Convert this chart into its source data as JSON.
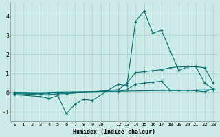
{
  "xlabel": "Humidex (Indice chaleur)",
  "background_color": "#cceae7",
  "grid_color": "#aacfcc",
  "line_color": "#006e6e",
  "xlim": [
    -0.5,
    23.5
  ],
  "ylim": [
    -1.5,
    4.7
  ],
  "yticks": [
    -1,
    0,
    1,
    2,
    3,
    4
  ],
  "lines": [
    {
      "x": [
        0,
        3,
        4,
        5,
        6,
        7,
        8,
        9,
        12,
        13,
        14,
        15,
        16,
        17,
        18,
        19,
        20,
        21,
        22,
        23
      ],
      "y": [
        -0.1,
        -0.2,
        -0.3,
        -0.15,
        -1.1,
        -0.6,
        -0.35,
        -0.4,
        0.45,
        0.35,
        3.7,
        4.25,
        3.1,
        3.25,
        2.2,
        1.15,
        1.35,
        1.35,
        0.5,
        0.2
      ]
    },
    {
      "x": [
        0,
        3,
        4,
        5,
        6,
        12,
        13,
        14,
        15,
        16,
        17,
        18,
        19,
        20,
        21,
        22,
        23
      ],
      "y": [
        -0.05,
        -0.1,
        -0.1,
        -0.05,
        -0.05,
        0.15,
        0.5,
        1.05,
        1.1,
        1.15,
        1.2,
        1.3,
        1.35,
        1.35,
        1.35,
        1.3,
        0.5
      ]
    },
    {
      "x": [
        0,
        3,
        4,
        5,
        6,
        12,
        13,
        14,
        15,
        16,
        17,
        18,
        19,
        20,
        21,
        22,
        23
      ],
      "y": [
        -0.02,
        -0.05,
        -0.02,
        0.0,
        -0.02,
        0.05,
        0.15,
        0.45,
        0.5,
        0.55,
        0.6,
        0.12,
        0.12,
        0.12,
        0.1,
        0.05,
        0.2
      ]
    },
    {
      "x": [
        0,
        23
      ],
      "y": [
        0.0,
        0.15
      ]
    }
  ]
}
